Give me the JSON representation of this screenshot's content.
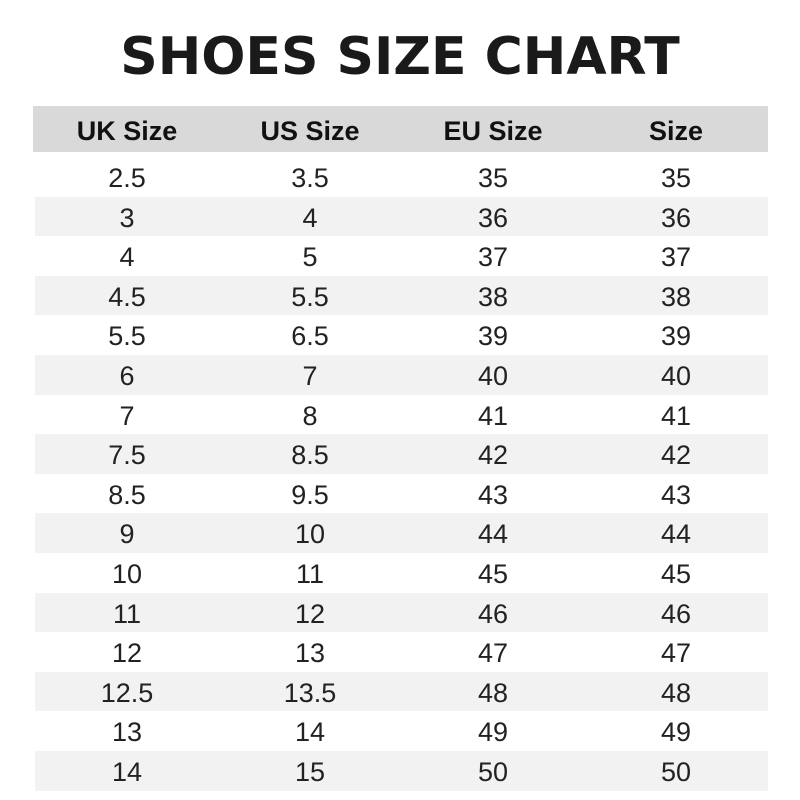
{
  "chart_data": {
    "type": "table",
    "title": "SHOES SIZE CHART",
    "columns": [
      "UK Size",
      "US Size",
      "EU Size",
      "Size"
    ],
    "rows": [
      [
        "2.5",
        "3.5",
        "35",
        "35"
      ],
      [
        "3",
        "4",
        "36",
        "36"
      ],
      [
        "4",
        "5",
        "37",
        "37"
      ],
      [
        "4.5",
        "5.5",
        "38",
        "38"
      ],
      [
        "5.5",
        "6.5",
        "39",
        "39"
      ],
      [
        "6",
        "7",
        "40",
        "40"
      ],
      [
        "7",
        "8",
        "41",
        "41"
      ],
      [
        "7.5",
        "8.5",
        "42",
        "42"
      ],
      [
        "8.5",
        "9.5",
        "43",
        "43"
      ],
      [
        "9",
        "10",
        "44",
        "44"
      ],
      [
        "10",
        "11",
        "45",
        "45"
      ],
      [
        "11",
        "12",
        "46",
        "46"
      ],
      [
        "12",
        "13",
        "47",
        "47"
      ],
      [
        "12.5",
        "13.5",
        "48",
        "48"
      ],
      [
        "13",
        "14",
        "49",
        "49"
      ],
      [
        "14",
        "15",
        "50",
        "50"
      ]
    ],
    "colors": {
      "header": "#d9d9d9",
      "stripe": "#f2f2f2",
      "text": "#1a1a1a"
    }
  }
}
